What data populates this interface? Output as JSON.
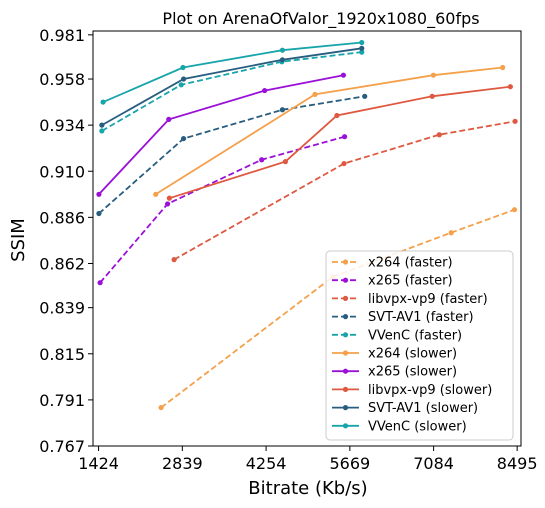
{
  "chart_data": {
    "type": "line",
    "title": "Plot on ArenaOfValor_1920x1080_60fps",
    "xlabel": "Bitrate (Kb/s)",
    "ylabel": "SSIM",
    "xlim": [
      1330,
      8560
    ],
    "ylim": [
      0.767,
      0.983
    ],
    "xticks": [
      "1424",
      "2839",
      "4254",
      "5669",
      "7084",
      "8495"
    ],
    "xtick_values": [
      1424,
      2839,
      4254,
      5669,
      7084,
      8495
    ],
    "yticks": [
      "0.767",
      "0.791",
      "0.815",
      "0.839",
      "0.862",
      "0.886",
      "0.910",
      "0.934",
      "0.958",
      "0.981"
    ],
    "ytick_values": [
      0.767,
      0.791,
      0.815,
      0.839,
      0.862,
      0.886,
      0.91,
      0.934,
      0.958,
      0.981
    ],
    "grid": false,
    "legend_position": "lower-right",
    "series": [
      {
        "name": "x264 (faster)",
        "color": "#f5a04a",
        "dashed": true,
        "points": [
          [
            2480,
            0.787
          ],
          [
            5380,
            0.855
          ],
          [
            7380,
            0.878
          ],
          [
            8450,
            0.89
          ]
        ]
      },
      {
        "name": "x265 (faster)",
        "color": "#9a10d8",
        "dashed": true,
        "points": [
          [
            1450,
            0.852
          ],
          [
            2590,
            0.893
          ],
          [
            4180,
            0.916
          ],
          [
            5580,
            0.928
          ]
        ]
      },
      {
        "name": "libvpx-vp9 (faster)",
        "color": "#df5840",
        "dashed": true,
        "points": [
          [
            2700,
            0.864
          ],
          [
            5570,
            0.914
          ],
          [
            7180,
            0.929
          ],
          [
            8460,
            0.936
          ]
        ]
      },
      {
        "name": "SVT-AV1 (faster)",
        "color": "#275d7f",
        "dashed": true,
        "points": [
          [
            1430,
            0.888
          ],
          [
            2860,
            0.927
          ],
          [
            4530,
            0.942
          ],
          [
            5920,
            0.949
          ]
        ]
      },
      {
        "name": "VVenC (faster)",
        "color": "#17a5ab",
        "dashed": true,
        "points": [
          [
            1480,
            0.931
          ],
          [
            2820,
            0.955
          ],
          [
            4520,
            0.967
          ],
          [
            5870,
            0.972
          ]
        ]
      },
      {
        "name": "x264 (slower)",
        "color": "#f5a04a",
        "dashed": false,
        "points": [
          [
            2390,
            0.898
          ],
          [
            5080,
            0.95
          ],
          [
            7080,
            0.96
          ],
          [
            8250,
            0.964
          ]
        ]
      },
      {
        "name": "x265 (slower)",
        "color": "#9a10d8",
        "dashed": false,
        "points": [
          [
            1430,
            0.898
          ],
          [
            2610,
            0.937
          ],
          [
            4230,
            0.952
          ],
          [
            5560,
            0.96
          ]
        ]
      },
      {
        "name": "libvpx-vp9 (slower)",
        "color": "#df5840",
        "dashed": false,
        "points": [
          [
            2620,
            0.896
          ],
          [
            4580,
            0.915
          ],
          [
            5450,
            0.939
          ],
          [
            7060,
            0.949
          ],
          [
            8380,
            0.954
          ]
        ]
      },
      {
        "name": "SVT-AV1 (slower)",
        "color": "#275d7f",
        "dashed": false,
        "points": [
          [
            1480,
            0.934
          ],
          [
            2860,
            0.958
          ],
          [
            4530,
            0.968
          ],
          [
            5870,
            0.974
          ]
        ]
      },
      {
        "name": "VVenC (slower)",
        "color": "#17a5ab",
        "dashed": false,
        "points": [
          [
            1500,
            0.946
          ],
          [
            2850,
            0.964
          ],
          [
            4530,
            0.973
          ],
          [
            5870,
            0.977
          ]
        ]
      }
    ]
  }
}
